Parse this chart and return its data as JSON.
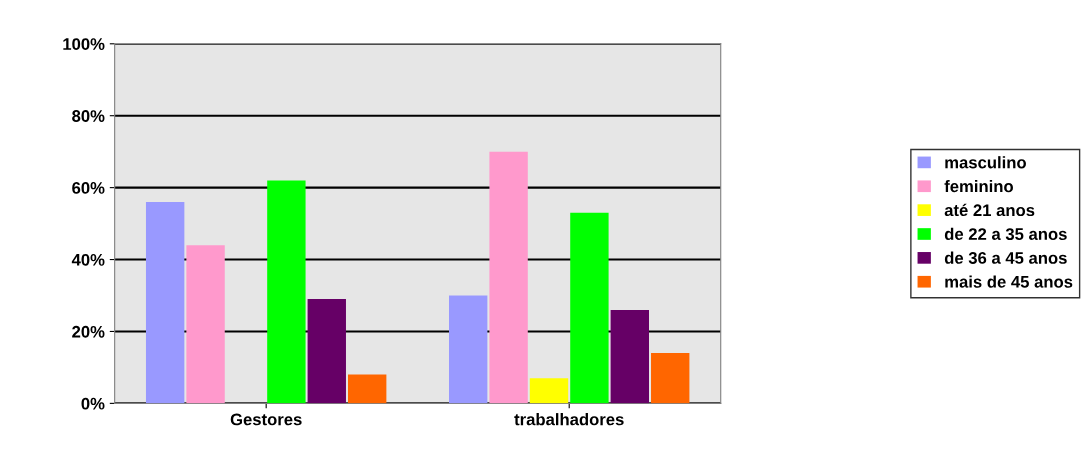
{
  "chart_data": {
    "type": "bar",
    "categories": [
      "Gestores",
      "trabalhadores"
    ],
    "series": [
      {
        "name": "masculino",
        "color": "#9999ff",
        "values": [
          56,
          30
        ]
      },
      {
        "name": "feminino",
        "color": "#ff99cc",
        "values": [
          44,
          70
        ]
      },
      {
        "name": "até 21 anos",
        "color": "#ffff00",
        "values": [
          0,
          7
        ]
      },
      {
        "name": "de 22 a 35 anos",
        "color": "#00ff00",
        "values": [
          62,
          53
        ]
      },
      {
        "name": "de 36 a 45 anos",
        "color": "#660066",
        "values": [
          29,
          26
        ]
      },
      {
        "name": "mais de 45 anos",
        "color": "#ff6600",
        "values": [
          8,
          14
        ]
      }
    ],
    "ylim": [
      0,
      100
    ],
    "yticks": [
      {
        "value": 0,
        "label": "0%"
      },
      {
        "value": 20,
        "label": "20%"
      },
      {
        "value": 40,
        "label": "40%"
      },
      {
        "value": 60,
        "label": "60%"
      },
      {
        "value": 80,
        "label": "80%"
      },
      {
        "value": 100,
        "label": "100%"
      }
    ],
    "grid": "y",
    "legend": "right"
  }
}
